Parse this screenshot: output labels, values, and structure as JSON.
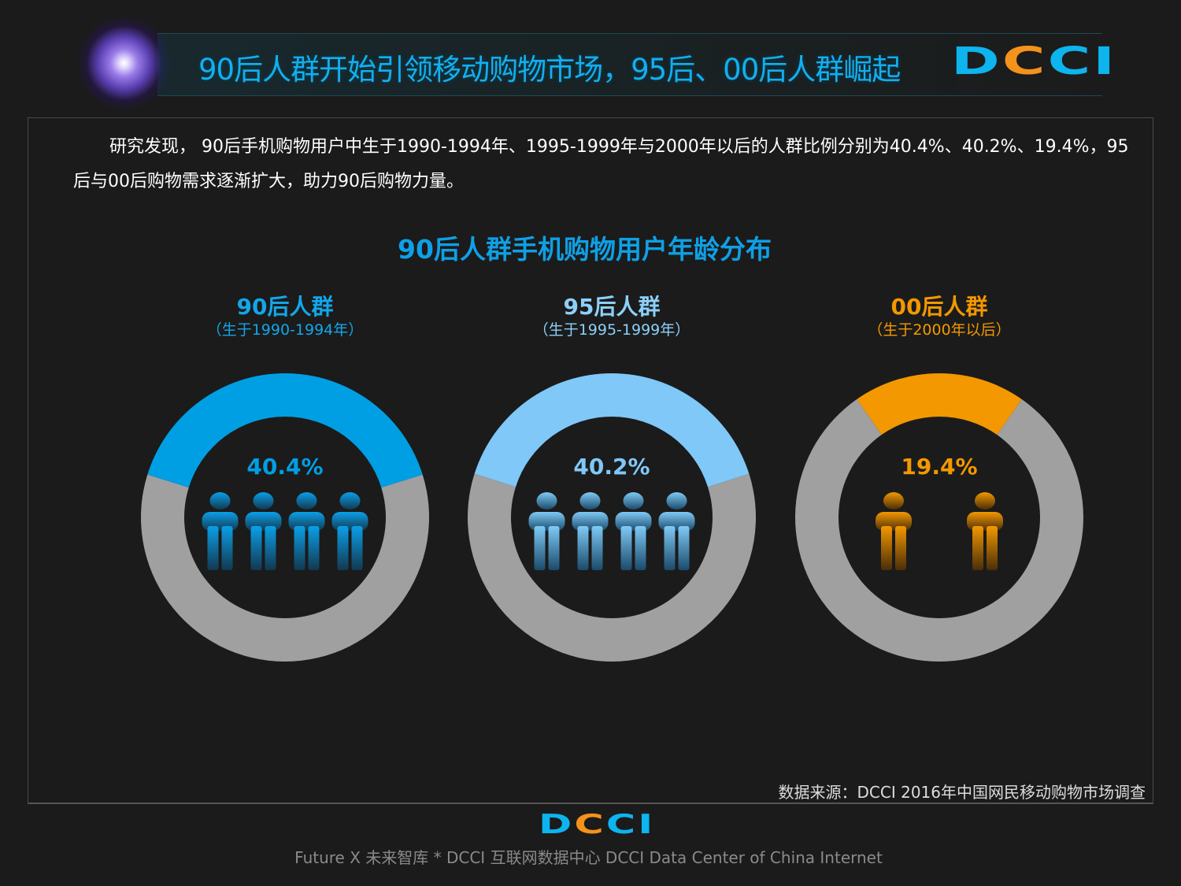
{
  "header": {
    "title": "90后人群开始引领移动购物市场，95后、00后人群崛起",
    "logo": [
      "D",
      "C",
      "C",
      "I"
    ]
  },
  "intro": "研究发现， 90后手机购物用户中生于1990-1994年、1995-1999年与2000年以后的人群比例分别为40.4%、40.2%、19.4%，95后与00后购物需求逐渐扩大，助力90后购物力量。",
  "chart_data": {
    "type": "pie",
    "title": "90后人群手机购物用户年龄分布",
    "series": [
      {
        "name": "90后人群",
        "subtitle": "（生于1990-1994年）",
        "value": 40.4,
        "label": "40.4%",
        "color": "#009fe3",
        "icon": "person-arms-crossed-icon",
        "icon_count": 4
      },
      {
        "name": "95后人群",
        "subtitle": "（生于1995-1999年）",
        "value": 40.2,
        "label": "40.2%",
        "color": "#7fc8f8",
        "icon": "person-walking-icon",
        "icon_count": 4
      },
      {
        "name": "00后人群",
        "subtitle": "（生于2000年以后）",
        "value": 19.4,
        "label": "19.4%",
        "color": "#f39800",
        "icon": "person-thinking-icon",
        "icon_count": 2
      }
    ],
    "remainder_color": "#a0a0a0",
    "unit": "%"
  },
  "source": "数据来源：DCCI 2016年中国网民移动购物市场调查",
  "footer": "Future X 未来智库 * DCCI 互联网数据中心 DCCI Data Center of China Internet"
}
